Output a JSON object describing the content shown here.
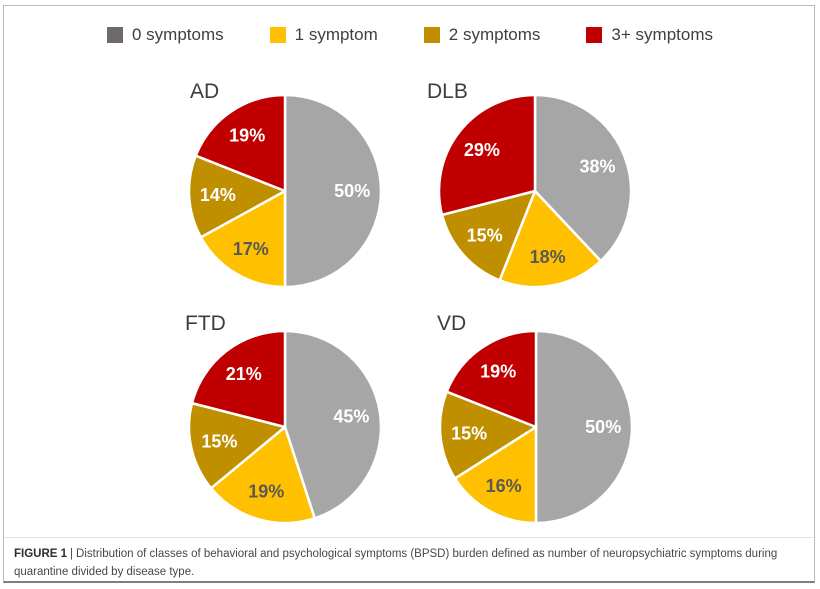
{
  "figure": {
    "legend": [
      {
        "label": "0 symptoms",
        "color": "#6E6A69"
      },
      {
        "label": "1 symptom",
        "color": "#FFC000"
      },
      {
        "label": "2 symptoms",
        "color": "#BF8F00"
      },
      {
        "label": "3+ symptoms",
        "color": "#C00000"
      }
    ],
    "caption": {
      "label": "FIGURE 1",
      "separator": "|",
      "text": "Distribution of classes of behavioral and psychological symptoms (BPSD) burden defined as number of neuropsychiatric symptoms during quarantine divided by disease type."
    }
  },
  "colors": {
    "slice_fills": [
      "#A6A6A6",
      "#FFC000",
      "#BF8F00",
      "#C00000"
    ],
    "slice_label_colors": [
      "#FFFFFF",
      "#595959",
      "#FFFFFF",
      "#FFFFFF"
    ],
    "slice_separator": "#FFFFFF"
  },
  "chart_data": [
    {
      "type": "pie",
      "title": "AD",
      "categories": [
        "0 symptoms",
        "1 symptom",
        "2 symptoms",
        "3+ symptoms"
      ],
      "values": [
        50,
        17,
        14,
        19
      ],
      "unit": "%",
      "start_angle_deg": 0,
      "direction": "clockwise",
      "legend_position": "top"
    },
    {
      "type": "pie",
      "title": "DLB",
      "categories": [
        "0 symptoms",
        "1 symptom",
        "2 symptoms",
        "3+ symptoms"
      ],
      "values": [
        38,
        18,
        15,
        29
      ],
      "unit": "%",
      "start_angle_deg": 0,
      "direction": "clockwise",
      "legend_position": "top"
    },
    {
      "type": "pie",
      "title": "FTD",
      "categories": [
        "0 symptoms",
        "1 symptom",
        "2 symptoms",
        "3+ symptoms"
      ],
      "values": [
        45,
        19,
        15,
        21
      ],
      "unit": "%",
      "start_angle_deg": 0,
      "direction": "clockwise",
      "legend_position": "top"
    },
    {
      "type": "pie",
      "title": "VD",
      "categories": [
        "0 symptoms",
        "1 symptom",
        "2 symptoms",
        "3+ symptoms"
      ],
      "values": [
        50,
        16,
        15,
        19
      ],
      "unit": "%",
      "start_angle_deg": 0,
      "direction": "clockwise",
      "legend_position": "top"
    }
  ]
}
